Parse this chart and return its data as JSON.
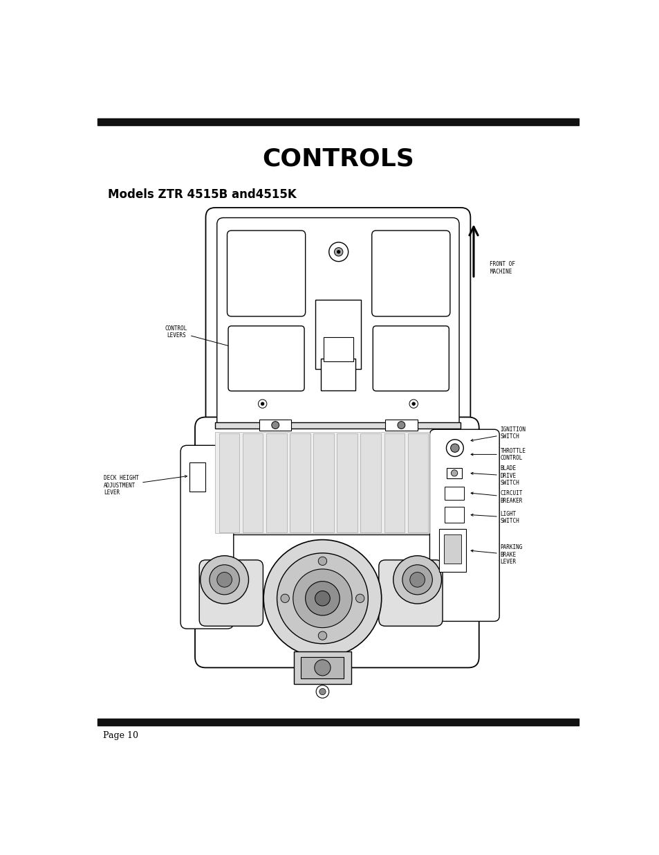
{
  "title": "CONTROLS",
  "subtitle": "Models ZTR 4515B and4515K",
  "page_label": "Page 10",
  "bg_color": "#ffffff",
  "title_fontsize": 26,
  "subtitle_fontsize": 12,
  "page_fontsize": 9,
  "bar_color": "#111111",
  "label_fontsize": 5.5,
  "labels": {
    "control_levers": "CONTROL\nLEVERS",
    "front_of_machine": "FRONT OF\nMACHINE",
    "ignition_switch": "IGNITION\nSWITCH",
    "throttle_control": "THROTTLE\nCONTROL",
    "blade_drive_switch": "BLADE\nDRIVE\nSWITCH",
    "circuit_breaker": "CIRCUIT\nBREAKER",
    "light_switch": "LIGHT\nSWITCH",
    "parking_brake_lever": "PARKING\nBRAKE\nLEVER",
    "deck_height": "DECK HEIGHT\nADJUSTMENT\nLEVER"
  }
}
